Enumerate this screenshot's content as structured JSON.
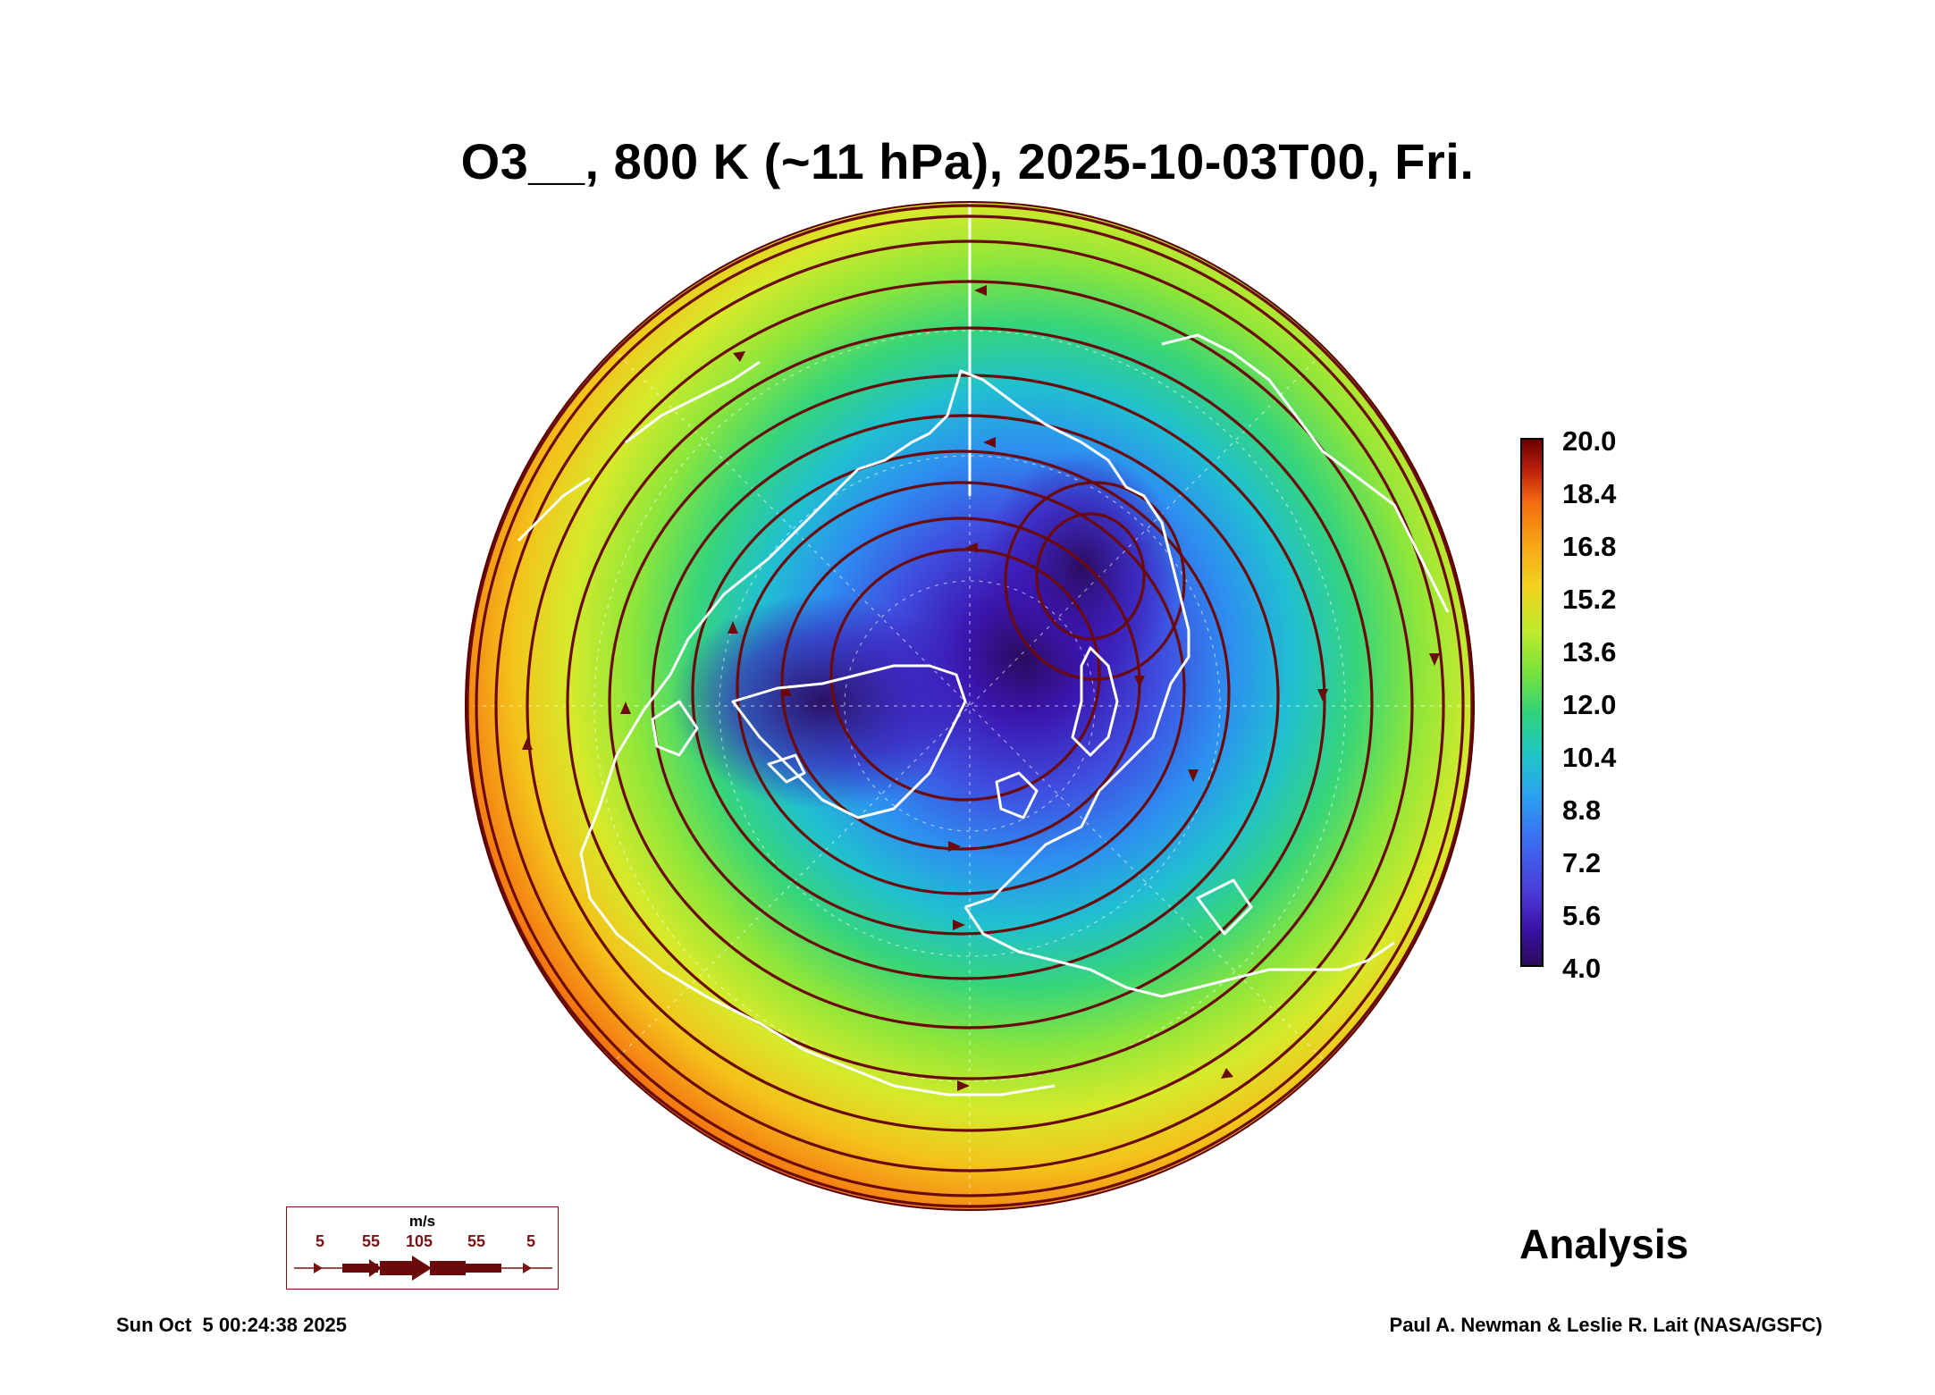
{
  "title": "O3__, 800 K (~11 hPa), 2025-10-03T00, Fri.",
  "colorbar": {
    "labels": [
      "20.0",
      "18.4",
      "16.8",
      "15.2",
      "13.6",
      "12.0",
      "10.4",
      "8.8",
      "7.2",
      "5.6",
      "4.0"
    ],
    "min": 4.0,
    "max": 20.0,
    "colors": [
      "#2a0b5a",
      "#3b12a8",
      "#4b3cd8",
      "#3a6ff0",
      "#2ba0f0",
      "#1ec6c8",
      "#2fd37a",
      "#7be33a",
      "#c2ea2a",
      "#f2d41e",
      "#f8a514",
      "#f46d10",
      "#c0210c",
      "#6a0000"
    ]
  },
  "wind_legend": {
    "unit": "m/s",
    "values": [
      "5",
      "55",
      "105",
      "55",
      "5"
    ]
  },
  "analysis_label": "Analysis",
  "footer": {
    "timestamp": "Sun Oct  5 00:24:38 2025",
    "credit": "Paul A. Newman & Leslie R. Lait (NASA/GSFC)"
  },
  "map": {
    "projection": "north polar stereographic",
    "coastline_color": "#ffffff",
    "streamline_color": "#6b0a0a"
  }
}
